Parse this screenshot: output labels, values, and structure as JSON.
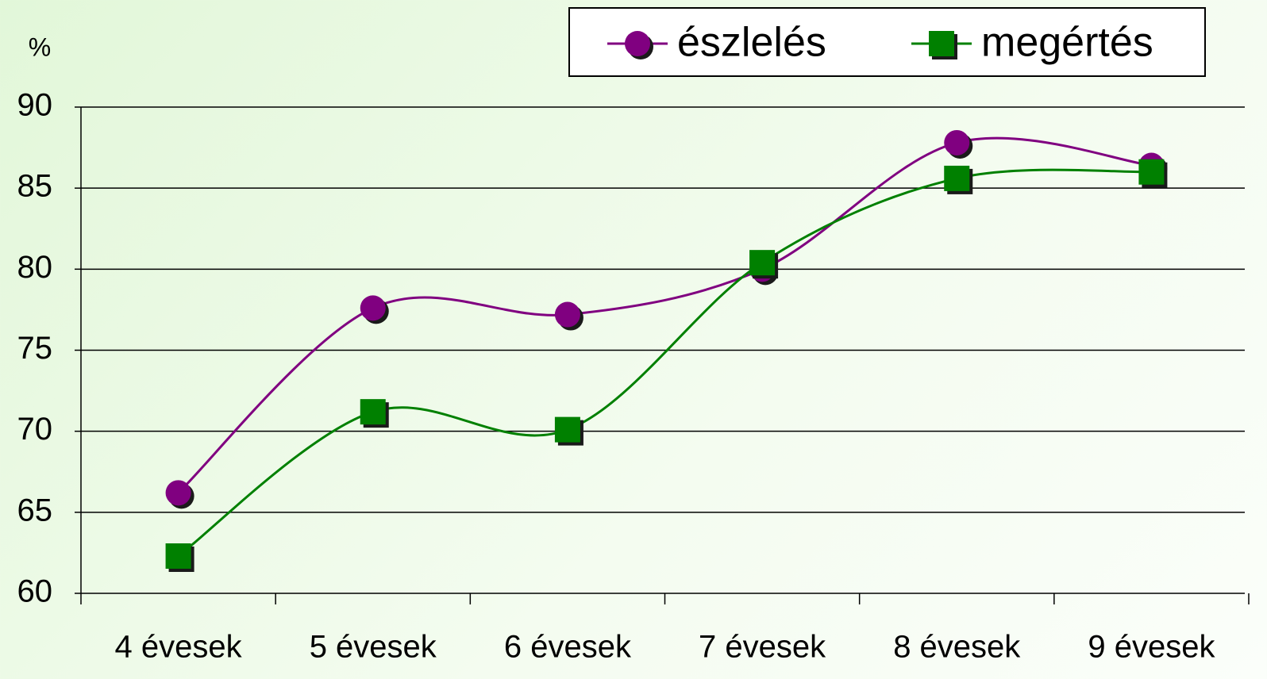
{
  "chart_data": {
    "type": "line",
    "y_axis_label": "%",
    "categories": [
      "4 évesek",
      "5 évesek",
      "6 évesek",
      "7 évesek",
      "8 évesek",
      "9 évesek"
    ],
    "series": [
      {
        "name": "észlelés",
        "color": "#800080",
        "marker": "circle",
        "values": [
          66.2,
          77.6,
          77.2,
          80.0,
          87.8,
          86.4
        ]
      },
      {
        "name": "megértés",
        "color": "#008000",
        "marker": "square",
        "values": [
          62.3,
          71.2,
          70.1,
          80.4,
          85.6,
          86.0
        ]
      }
    ],
    "ylim": [
      60,
      90
    ],
    "yticks": [
      60,
      65,
      70,
      75,
      80,
      85,
      90
    ],
    "grid": true,
    "smooth": true,
    "legend": "top-right"
  }
}
